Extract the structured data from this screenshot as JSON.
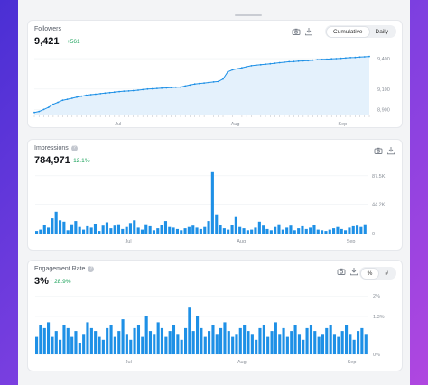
{
  "colors": {
    "accent": "#1e90e6",
    "fill": "#e4f1fc",
    "positive": "#1aa25a"
  },
  "cards": {
    "followers": {
      "title": "Followers",
      "value": "9,421",
      "delta": "+561",
      "toggle": {
        "options": [
          "Cumulative",
          "Daily"
        ],
        "selected": "Cumulative"
      },
      "icons": [
        "camera-icon",
        "download-icon"
      ]
    },
    "impressions": {
      "title": "Impressions",
      "value": "784,971",
      "delta": "12.1%",
      "icons": [
        "camera-icon",
        "download-icon"
      ]
    },
    "engagement": {
      "title": "Engagement Rate",
      "value": "3%",
      "delta": "28.9%",
      "toggle": {
        "options": [
          "%",
          "#"
        ],
        "selected": "%"
      },
      "icons": [
        "camera-icon",
        "download-icon"
      ]
    }
  },
  "chart_data": [
    {
      "type": "area",
      "series_name": "Followers",
      "x_ticks": [
        "Jul",
        "Aug",
        "Sep"
      ],
      "y_ticks": [
        "8,900",
        "9,100",
        "9,400"
      ],
      "ylim": [
        8850,
        9480
      ],
      "values": [
        8870,
        8880,
        8900,
        8920,
        8950,
        8970,
        8990,
        9000,
        9010,
        9020,
        9030,
        9040,
        9045,
        9050,
        9055,
        9060,
        9065,
        9070,
        9075,
        9080,
        9082,
        9085,
        9090,
        9095,
        9100,
        9103,
        9106,
        9110,
        9112,
        9115,
        9118,
        9120,
        9130,
        9140,
        9150,
        9155,
        9160,
        9165,
        9170,
        9175,
        9200,
        9270,
        9290,
        9300,
        9310,
        9320,
        9330,
        9335,
        9340,
        9345,
        9350,
        9355,
        9360,
        9365,
        9370,
        9372,
        9375,
        9378,
        9380,
        9385,
        9390,
        9392,
        9395,
        9398,
        9400,
        9403,
        9406,
        9410,
        9412,
        9415,
        9418,
        9421
      ]
    },
    {
      "type": "bar",
      "series_name": "Impressions",
      "x_ticks": [
        "Jul",
        "Aug",
        "Sep"
      ],
      "y_ticks": [
        "0",
        "44.2K",
        "87.5K"
      ],
      "ylim": [
        0,
        90000
      ],
      "values": [
        4000,
        6000,
        13000,
        9000,
        23000,
        33000,
        20000,
        18000,
        5000,
        14000,
        19000,
        10000,
        6000,
        11000,
        9000,
        15000,
        4000,
        12000,
        17000,
        8000,
        12000,
        14000,
        7000,
        10000,
        16000,
        20000,
        9000,
        6000,
        14000,
        11000,
        5000,
        8000,
        13000,
        19000,
        10000,
        9000,
        7000,
        5000,
        8000,
        10000,
        12000,
        9000,
        7000,
        10000,
        19000,
        93000,
        29000,
        13000,
        8000,
        6000,
        13000,
        25000,
        10000,
        8000,
        5000,
        6000,
        9000,
        18000,
        12000,
        7000,
        5000,
        10000,
        14000,
        6000,
        9000,
        12000,
        5000,
        8000,
        11000,
        7000,
        9000,
        13000,
        6000,
        5000,
        4000,
        6000,
        8000,
        10000,
        7000,
        5000,
        9000,
        11000,
        12000,
        10000,
        14000
      ]
    },
    {
      "type": "bar",
      "series_name": "Engagement Rate",
      "x_ticks": [
        "Jul",
        "Aug",
        "Sep"
      ],
      "y_ticks": [
        "0%",
        "1.3%",
        "2%"
      ],
      "ylim": [
        0,
        2.1
      ],
      "values": [
        0.6,
        1.0,
        0.9,
        1.1,
        0.6,
        0.8,
        0.5,
        1.0,
        0.9,
        0.6,
        0.8,
        0.4,
        0.7,
        1.1,
        0.9,
        0.8,
        0.6,
        0.5,
        0.9,
        1.0,
        0.6,
        0.8,
        1.2,
        0.7,
        0.5,
        0.9,
        1.0,
        0.6,
        1.3,
        0.8,
        0.7,
        1.1,
        0.9,
        0.6,
        0.8,
        1.0,
        0.7,
        0.5,
        0.9,
        1.6,
        0.8,
        1.3,
        0.9,
        0.6,
        0.8,
        1.0,
        0.7,
        0.9,
        1.1,
        0.8,
        0.6,
        0.7,
        0.9,
        1.0,
        0.8,
        0.7,
        0.5,
        0.9,
        1.0,
        0.6,
        0.8,
        1.1,
        0.7,
        0.9,
        0.6,
        0.8,
        1.0,
        0.7,
        0.5,
        0.9,
        1.0,
        0.8,
        0.6,
        0.7,
        0.9,
        1.0,
        0.7,
        0.6,
        0.8,
        1.0,
        0.7,
        0.5,
        0.8,
        0.9,
        0.7
      ]
    }
  ]
}
